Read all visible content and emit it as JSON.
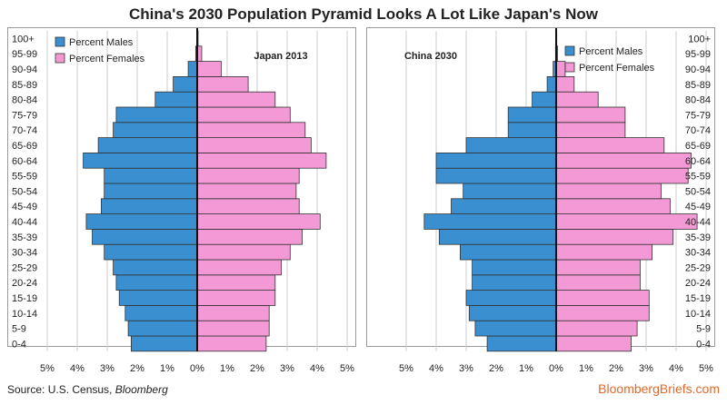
{
  "title": "China's 2030 Population Pyramid Looks A Lot Like Japan's Now",
  "source_prefix": "Source: U.S. Census, ",
  "source_italic": "Bloomberg",
  "brand": "BloombergBriefs.com",
  "colors": {
    "males": "#3a8fd0",
    "females": "#f39ad6",
    "stroke": "#333333",
    "grid": "#cccccc",
    "center_line": "#111111"
  },
  "chart_data": [
    {
      "type": "bar",
      "title": "Japan 2013",
      "orientation": "horizontal-pyramid",
      "categories": [
        "0-4",
        "5-9",
        "10-14",
        "15-19",
        "20-24",
        "25-29",
        "30-34",
        "35-39",
        "40-44",
        "45-49",
        "50-54",
        "55-59",
        "60-64",
        "65-69",
        "70-74",
        "75-79",
        "80-84",
        "85-89",
        "90-94",
        "95-99",
        "100+"
      ],
      "xlabel": "",
      "ylabel": "",
      "xlim": [
        -5,
        5
      ],
      "xticks": [
        "5%",
        "4%",
        "3%",
        "2%",
        "1%",
        "0%",
        "1%",
        "2%",
        "3%",
        "4%",
        "5%"
      ],
      "legend_position": "top-left",
      "series": [
        {
          "name": "Percent Males",
          "values": [
            2.2,
            2.3,
            2.4,
            2.6,
            2.7,
            2.8,
            3.1,
            3.5,
            3.7,
            3.2,
            3.1,
            3.1,
            3.8,
            3.3,
            2.8,
            2.7,
            1.4,
            0.8,
            0.3,
            0.05,
            0.01
          ]
        },
        {
          "name": "Percent Females",
          "values": [
            2.3,
            2.4,
            2.4,
            2.6,
            2.6,
            2.8,
            3.1,
            3.5,
            4.1,
            3.4,
            3.3,
            3.4,
            4.3,
            3.8,
            3.6,
            3.1,
            2.6,
            1.7,
            0.8,
            0.15,
            0.03
          ]
        }
      ]
    },
    {
      "type": "bar",
      "title": "China 2030",
      "orientation": "horizontal-pyramid",
      "categories": [
        "0-4",
        "5-9",
        "10-14",
        "15-19",
        "20-24",
        "25-29",
        "30-34",
        "35-39",
        "40-44",
        "45-49",
        "50-54",
        "55-59",
        "60-64",
        "65-69",
        "70-74",
        "75-79",
        "80-84",
        "85-89",
        "90-94",
        "95-99",
        "100+"
      ],
      "xlabel": "",
      "ylabel": "",
      "xlim": [
        -5,
        5
      ],
      "xticks": [
        "5%",
        "4%",
        "3%",
        "2%",
        "1%",
        "0%",
        "1%",
        "2%",
        "3%",
        "4%",
        "5%"
      ],
      "legend_position": "top-right",
      "series": [
        {
          "name": "Percent Males",
          "values": [
            2.3,
            2.7,
            2.9,
            3.0,
            2.8,
            2.8,
            3.2,
            3.9,
            4.4,
            3.5,
            3.1,
            4.0,
            4.0,
            3.0,
            1.6,
            1.6,
            0.8,
            0.3,
            0.1,
            0.02,
            0.01
          ]
        },
        {
          "name": "Percent Females",
          "values": [
            2.5,
            2.7,
            3.1,
            3.1,
            2.8,
            2.8,
            3.2,
            3.9,
            4.7,
            3.8,
            3.5,
            4.4,
            4.5,
            3.6,
            2.3,
            2.3,
            1.4,
            0.6,
            0.3,
            0.05,
            0.02
          ]
        }
      ]
    }
  ]
}
